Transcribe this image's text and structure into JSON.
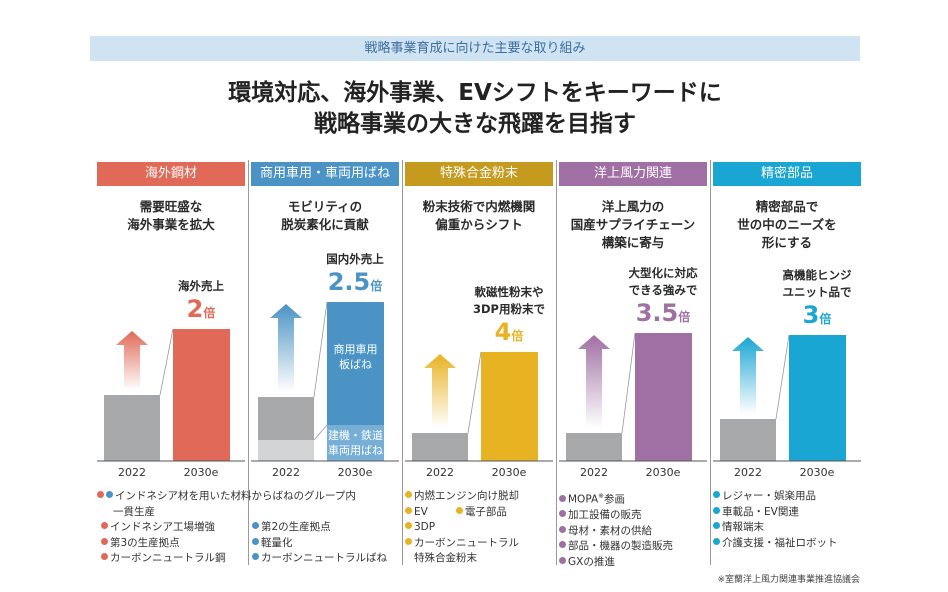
{
  "banner": "戦略事業育成に向けた主要な取り組み",
  "title_lines": [
    "環境対応、海外事業、EVシフトをキーワードに",
    "戦略事業の大きな飛躍を目指す"
  ],
  "chart_data": {
    "type": "bar",
    "categories": [
      "2022",
      "2030e"
    ],
    "panels": [
      {
        "header": "海外鋼材",
        "header_color": "#e06a57",
        "bar_color": "#e06a57",
        "subtitle": [
          "需要旺盛な",
          "海外事業を拡大"
        ],
        "label": [
          "海外売上"
        ],
        "multiplier": "2",
        "unit": "倍",
        "values": [
          1,
          2
        ]
      },
      {
        "header": "商用車用・車両用ばね",
        "header_color": "#4b93c4",
        "bar_color": "#4b93c4",
        "subtitle": [
          "モビリティの",
          "脱炭素化に貢献"
        ],
        "label": [
          "国内外売上"
        ],
        "multiplier": "2.5",
        "unit": "倍",
        "values": [
          1,
          2.5
        ],
        "segments": [
          "商用車用板ばね",
          "建機・鉄道車両用ばね"
        ],
        "segment_lines": [
          [
            "商用車用",
            "板ばね"
          ],
          [
            "建機・鉄道",
            "車両用ばね"
          ]
        ]
      },
      {
        "header": "特殊合金粉末",
        "header_color": "#c49a1f",
        "bar_color": "#e8b323",
        "subtitle": [
          "粉末技術で内燃機関",
          "偏重からシフト"
        ],
        "label": [
          "軟磁性粉末や",
          "3DP用粉末で"
        ],
        "multiplier": "4",
        "unit": "倍",
        "values": [
          1,
          4
        ]
      },
      {
        "header": "洋上風力関連",
        "header_color": "#a06fa3",
        "bar_color": "#a06fa3",
        "subtitle": [
          "洋上風力の",
          "国産サプライチェーン",
          "構築に寄与"
        ],
        "label": [
          "大型化に対応",
          "できる強みで"
        ],
        "multiplier": "3.5",
        "unit": "倍",
        "values": [
          1,
          3.5
        ]
      },
      {
        "header": "精密部品",
        "header_color": "#1aa6d2",
        "bar_color": "#1aa6d2",
        "subtitle": [
          "精密部品で",
          "世の中のニーズを",
          "形にする"
        ],
        "label": [
          "高機能ヒンジ",
          "ユニット品で"
        ],
        "multiplier": "3",
        "unit": "倍",
        "values": [
          1,
          3
        ]
      }
    ]
  },
  "bullets": {
    "shared": "インドネシア材を用いた材料からばねのグループ内",
    "shared_cont": "一貫生産",
    "col1": [
      "インドネシア工場増強",
      "第3の生産拠点",
      "カーボンニュートラル鋼"
    ],
    "col2": [
      "第2の生産拠点",
      "軽量化",
      "カーボンニュートラルばね"
    ],
    "col3": [
      "内燃エンジン向け脱却",
      "EV",
      "電子部品",
      "3DP",
      "カーボンニュートラル"
    ],
    "col3_cont": "特殊合金粉末",
    "col4": [
      "MOPA",
      "加工設備の販売",
      "母材・素材の供給",
      "部品・機器の製造販売",
      "GXの推進"
    ],
    "col4_mopa_rest": "参画",
    "col4_mark": "※",
    "col5": [
      "レジャー・娯楽用品",
      "車載品・EV関連",
      "情報端末",
      "介護支援・福祉ロボット"
    ]
  },
  "footnote": "※室蘭洋上風力関連事業推進協議会",
  "colors": {
    "bar_2022": "#a7a8aa",
    "bar_2022_light": "#d3d4d6"
  }
}
